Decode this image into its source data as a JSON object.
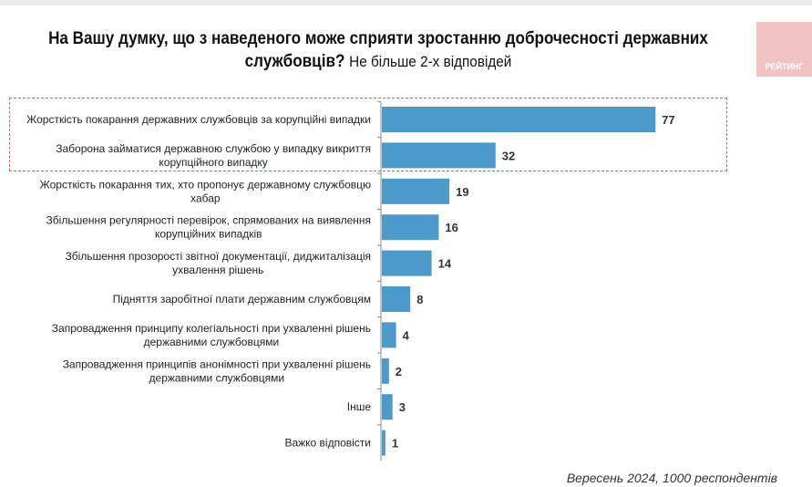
{
  "title": {
    "bold": "На Вашу думку, що з наведеного може сприяти зростанню доброчесності державних службовців?",
    "regular": "Не більше 2-х відповідей"
  },
  "logo_text": "РЕЙТИНГ",
  "footer": "Вересень 2024, 1000 респондентів",
  "colors": {
    "bar": "#4b9ac9",
    "highlight": "#e06060",
    "logo": "#f2c3c3"
  },
  "chart_data": {
    "type": "bar",
    "orientation": "horizontal",
    "categories": [
      [
        "Жорсткість покарання державних службовців за корупційні випадки"
      ],
      [
        "Заборона займатися державною службою у випадку викриття",
        "корупційного випадку"
      ],
      [
        "Жорсткість покарання тих, хто пропонує державному службовцю",
        "хабар"
      ],
      [
        "Збільшення регулярності перевірок, спрямованих на виявлення",
        "корупційних випадків"
      ],
      [
        "Збільшення прозорості звітної документації, диджиталізація",
        "ухвалення рішень"
      ],
      [
        "Підняття заробітної плати державним службовцям"
      ],
      [
        "Запровадження принципу колегіальності при ухваленні рішень",
        "державними службовцями"
      ],
      [
        "Запровадження принципів анонімності при ухваленні рішень",
        "державними службовцями"
      ],
      [
        "Інше"
      ],
      [
        "Важко відповісти"
      ]
    ],
    "values": [
      77,
      32,
      19,
      16,
      14,
      8,
      4,
      2,
      3,
      1
    ],
    "highlighted": [
      0,
      1
    ],
    "xlim": [
      0,
      80
    ],
    "grid": false
  }
}
